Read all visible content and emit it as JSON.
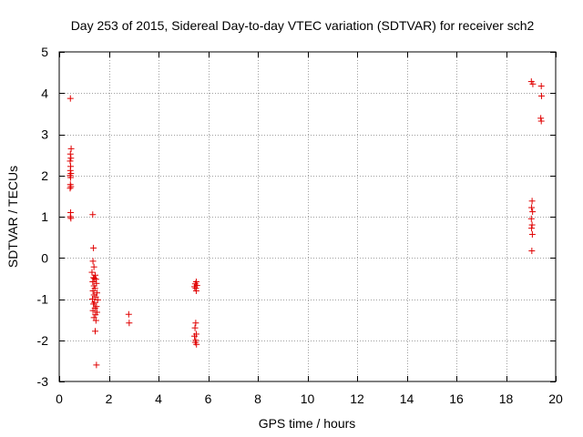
{
  "chart_data": {
    "type": "scatter",
    "title": "Day 253 of 2015, Sidereal Day-to-day VTEC variation (SDTVAR) for receiver sch2",
    "xlabel": "GPS time / hours",
    "ylabel": "SDTVAR / TECUs",
    "xlim": [
      0,
      20
    ],
    "ylim": [
      -3,
      5
    ],
    "x_ticks": [
      "0",
      "2",
      "4",
      "6",
      "8",
      "10",
      "12",
      "14",
      "16",
      "18",
      "20"
    ],
    "y_ticks": [
      "-3",
      "-2",
      "-1",
      "0",
      "1",
      "2",
      "3",
      "4",
      "5"
    ],
    "grid": true,
    "marker": "+",
    "series_color": "#e00000",
    "points": [
      [
        0.45,
        3.87
      ],
      [
        0.48,
        2.65
      ],
      [
        0.45,
        2.52
      ],
      [
        0.47,
        2.42
      ],
      [
        0.44,
        2.35
      ],
      [
        0.46,
        2.22
      ],
      [
        0.45,
        2.12
      ],
      [
        0.47,
        2.05
      ],
      [
        0.44,
        2.0
      ],
      [
        0.46,
        1.95
      ],
      [
        0.45,
        1.78
      ],
      [
        0.47,
        1.73
      ],
      [
        0.44,
        1.69
      ],
      [
        0.46,
        1.1
      ],
      [
        0.45,
        1.0
      ],
      [
        0.47,
        0.96
      ],
      [
        1.35,
        1.05
      ],
      [
        1.38,
        0.24
      ],
      [
        1.36,
        -0.08
      ],
      [
        1.4,
        -0.22
      ],
      [
        1.32,
        -0.35
      ],
      [
        1.45,
        -0.42
      ],
      [
        1.38,
        -0.48
      ],
      [
        1.42,
        -0.5
      ],
      [
        1.48,
        -0.52
      ],
      [
        1.35,
        -0.58
      ],
      [
        1.5,
        -0.62
      ],
      [
        1.4,
        -0.68
      ],
      [
        1.44,
        -0.74
      ],
      [
        1.36,
        -0.8
      ],
      [
        1.52,
        -0.85
      ],
      [
        1.4,
        -0.9
      ],
      [
        1.47,
        -0.95
      ],
      [
        1.34,
        -1.0
      ],
      [
        1.55,
        -1.02
      ],
      [
        1.42,
        -1.08
      ],
      [
        1.38,
        -1.12
      ],
      [
        1.5,
        -1.18
      ],
      [
        1.44,
        -1.22
      ],
      [
        1.36,
        -1.28
      ],
      [
        1.52,
        -1.32
      ],
      [
        1.46,
        -1.38
      ],
      [
        1.4,
        -1.45
      ],
      [
        1.48,
        -1.52
      ],
      [
        1.45,
        -1.78
      ],
      [
        1.5,
        -2.6
      ],
      [
        2.8,
        -1.37
      ],
      [
        2.82,
        -1.58
      ],
      [
        5.52,
        -0.58
      ],
      [
        5.48,
        -0.63
      ],
      [
        5.55,
        -0.67
      ],
      [
        5.45,
        -0.7
      ],
      [
        5.5,
        -0.74
      ],
      [
        5.52,
        -0.8
      ],
      [
        5.5,
        -1.58
      ],
      [
        5.47,
        -1.7
      ],
      [
        5.52,
        -1.85
      ],
      [
        5.45,
        -1.9
      ],
      [
        5.5,
        -2.0
      ],
      [
        5.48,
        -2.05
      ],
      [
        5.53,
        -2.1
      ],
      [
        19.02,
        4.28
      ],
      [
        19.08,
        4.22
      ],
      [
        19.42,
        4.17
      ],
      [
        19.43,
        3.93
      ],
      [
        19.4,
        3.39
      ],
      [
        19.42,
        3.32
      ],
      [
        19.05,
        1.38
      ],
      [
        19.03,
        1.22
      ],
      [
        19.07,
        1.12
      ],
      [
        19.02,
        0.95
      ],
      [
        19.05,
        0.8
      ],
      [
        19.03,
        0.72
      ],
      [
        19.06,
        0.57
      ],
      [
        19.04,
        0.17
      ]
    ]
  }
}
